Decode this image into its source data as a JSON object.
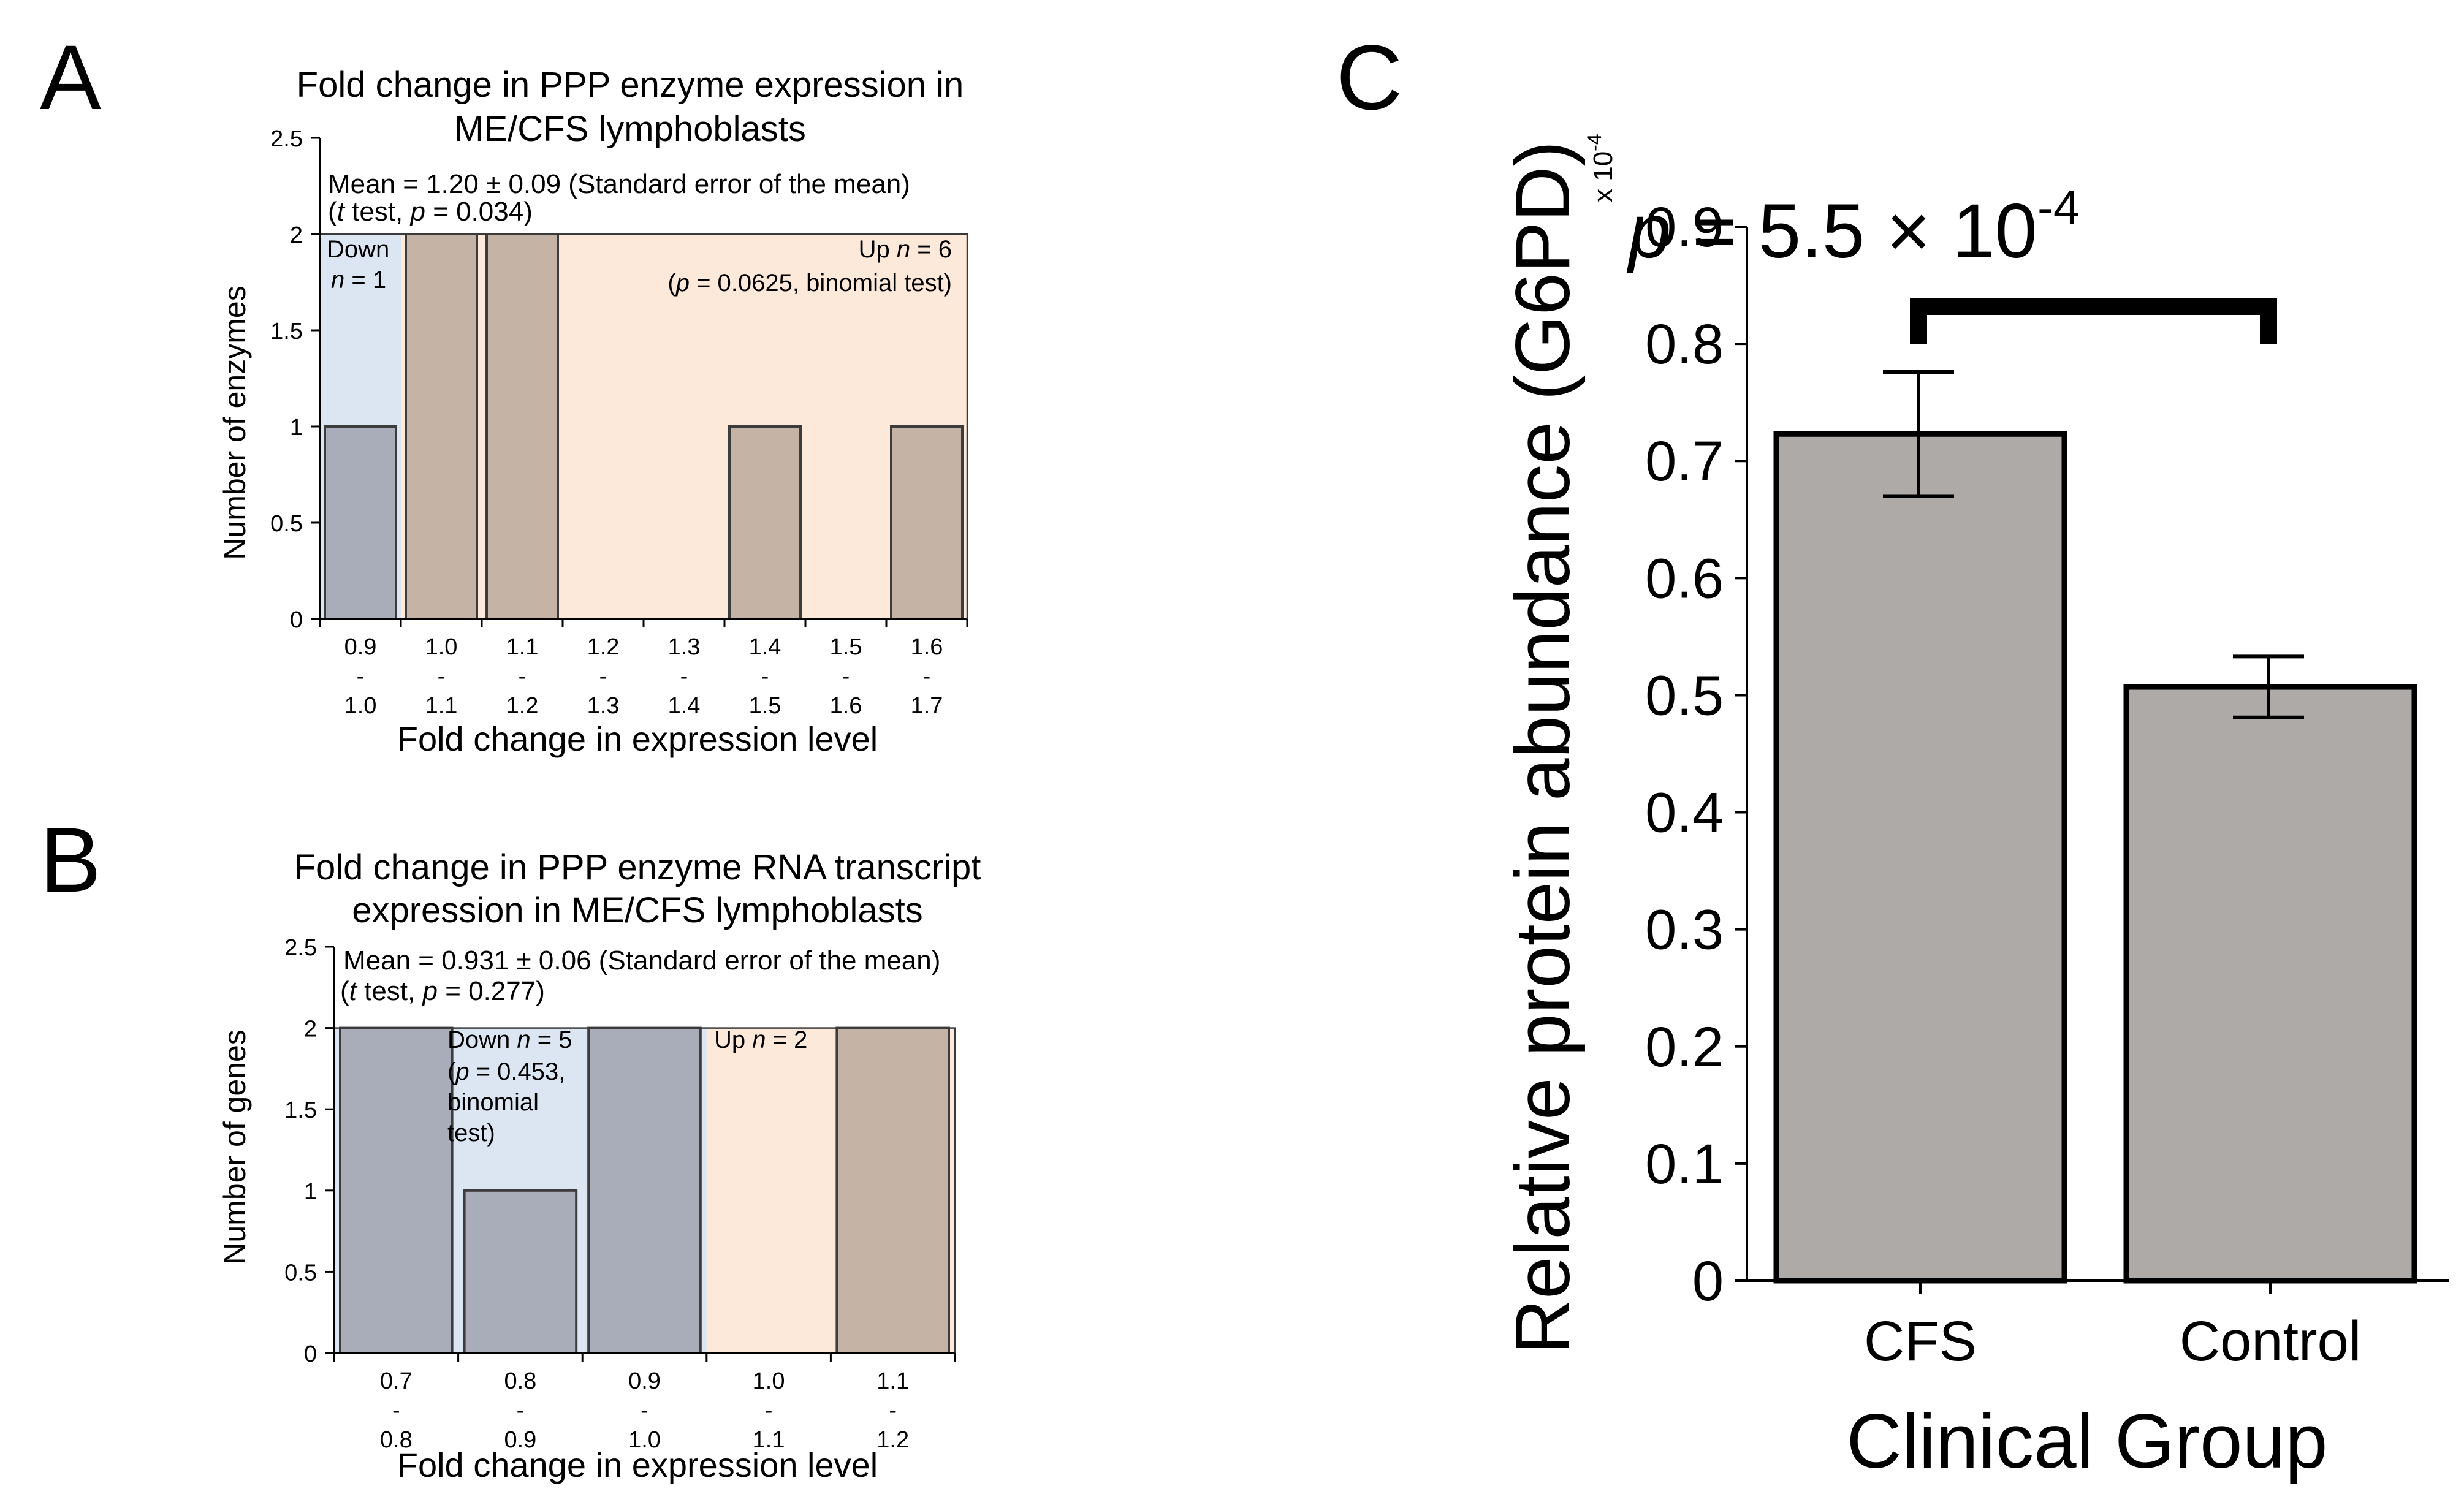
{
  "panel_labels": {
    "a": "A",
    "b": "B",
    "c": "C"
  },
  "chart_data": [
    {
      "id": "A",
      "type": "bar",
      "title": "Fold change in PPP enzyme expression in ME/CFS lymphoblasts",
      "title_lines": [
        "Fold change in PPP enzyme expression in",
        "ME/CFS lymphoblasts"
      ],
      "xlabel": "Fold change in expression level",
      "ylabel": "Number of enzymes",
      "ylim": [
        0,
        2.5
      ],
      "yticks": [
        "0",
        "0.5",
        "1",
        "1.5",
        "2",
        "2.5"
      ],
      "ytick_values": [
        0,
        0.5,
        1,
        1.5,
        2,
        2.5
      ],
      "categories": [
        {
          "low": "0.9",
          "sep": "-",
          "high": "1.0"
        },
        {
          "low": "1.0",
          "sep": "-",
          "high": "1.1"
        },
        {
          "low": "1.1",
          "sep": "-",
          "high": "1.2"
        },
        {
          "low": "1.2",
          "sep": "-",
          "high": "1.3"
        },
        {
          "low": "1.3",
          "sep": "-",
          "high": "1.4"
        },
        {
          "low": "1.4",
          "sep": "-",
          "high": "1.5"
        },
        {
          "low": "1.5",
          "sep": "-",
          "high": "1.6"
        },
        {
          "low": "1.6",
          "sep": "-",
          "high": "1.7"
        }
      ],
      "values": [
        1,
        2,
        2,
        0,
        0,
        1,
        0,
        1
      ],
      "down_bins": 1,
      "colors": {
        "down_region": "#dce6f2",
        "up_region": "#fde9d9",
        "down_bar": "#a9adb9",
        "up_bar": "#c5b3a6"
      },
      "stats_line1": "Mean = 1.20 ± 0.09 (Standard error of the mean)",
      "stats_line2": {
        "open": "(",
        "t": "t",
        "mid": " test, ",
        "p": "p",
        "val": " = 0.034)"
      },
      "down_label": {
        "word": "Down",
        "n": "n",
        "val": " = 1"
      },
      "up_label": {
        "word": "Up ",
        "n": "n",
        "val": " = 6"
      },
      "up_test": {
        "open": "(",
        "p": "p",
        "val": " = 0.0625, binomial test)"
      }
    },
    {
      "id": "B",
      "type": "bar",
      "title": "Fold change in PPP enzyme RNA transcript expression in ME/CFS lymphoblasts",
      "title_lines": [
        "Fold change in PPP enzyme RNA transcript",
        "expression in ME/CFS lymphoblasts"
      ],
      "xlabel": "Fold change in expression level",
      "ylabel": "Number of genes",
      "ylim": [
        0,
        2.5
      ],
      "yticks": [
        "0",
        "0.5",
        "1",
        "1.5",
        "2",
        "2.5"
      ],
      "ytick_values": [
        0,
        0.5,
        1,
        1.5,
        2,
        2.5
      ],
      "categories": [
        {
          "low": "0.7",
          "sep": "-",
          "high": "0.8"
        },
        {
          "low": "0.8",
          "sep": "-",
          "high": "0.9"
        },
        {
          "low": "0.9",
          "sep": "-",
          "high": "1.0"
        },
        {
          "low": "1.0",
          "sep": "-",
          "high": "1.1"
        },
        {
          "low": "1.1",
          "sep": "-",
          "high": "1.2"
        }
      ],
      "values": [
        2,
        1,
        2,
        0,
        2
      ],
      "down_bins": 3,
      "colors": {
        "down_region": "#dce6f2",
        "up_region": "#fde9d9",
        "down_bar": "#a9adb9",
        "up_bar": "#c5b3a6"
      },
      "stats_line1": "Mean = 0.931 ± 0.06 (Standard error of the mean)",
      "stats_line2": {
        "open": "(",
        "t": "t",
        "mid": " test, ",
        "p": "p",
        "val": " = 0.277)"
      },
      "down_label": {
        "word": "Down ",
        "n": "n",
        "val": " = 5"
      },
      "down_test": {
        "open": "(",
        "p": "p",
        "val": " = 0.453,",
        "line2": "binomial",
        "line3": "test)"
      },
      "up_label": {
        "word": "Up ",
        "n": "n",
        "val": " = 2"
      }
    },
    {
      "id": "C",
      "type": "bar",
      "xlabel": "Clinical Group",
      "ylabel": "Relative protein abundance (G6PD)",
      "yscale_label": {
        "base": "x 10",
        "exp": "-4"
      },
      "ylim": [
        0,
        0.9
      ],
      "yticks": [
        "0",
        "0.1",
        "0.2",
        "0.3",
        "0.4",
        "0.5",
        "0.6",
        "0.7",
        "0.8",
        "0.9"
      ],
      "ytick_values": [
        0,
        0.1,
        0.2,
        0.3,
        0.4,
        0.5,
        0.6,
        0.7,
        0.8,
        0.9
      ],
      "categories": [
        "CFS",
        "Control"
      ],
      "values": [
        0.723,
        0.507
      ],
      "errors": [
        0.053,
        0.026
      ],
      "bar_color": "#aeaaa8",
      "pvalue": {
        "p": "p",
        "text": " = 5.5 × 10",
        "exp": "-4"
      }
    }
  ]
}
